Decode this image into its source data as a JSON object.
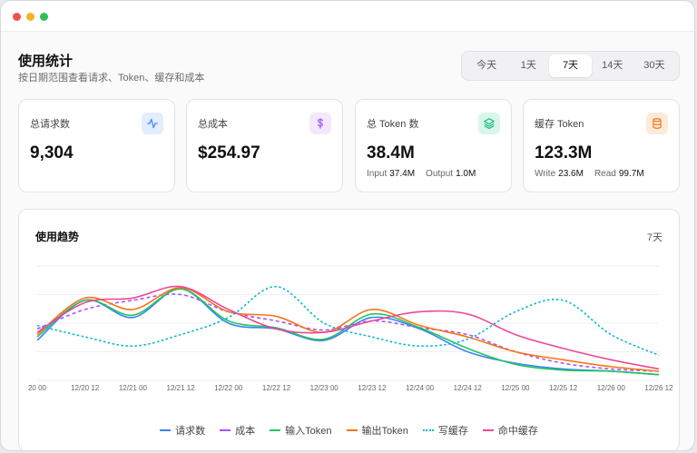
{
  "header": {
    "title": "使用统计",
    "subtitle": "按日期范围查看请求、Token、缓存和成本"
  },
  "range_tabs": [
    {
      "label": "今天",
      "active": false
    },
    {
      "label": "1天",
      "active": false
    },
    {
      "label": "7天",
      "active": true
    },
    {
      "label": "14天",
      "active": false
    },
    {
      "label": "30天",
      "active": false
    }
  ],
  "stats": {
    "requests": {
      "label": "总请求数",
      "value": "9,304",
      "icon": "activity-icon",
      "color": "#3b82f6"
    },
    "cost": {
      "label": "总成本",
      "value": "$254.97",
      "icon": "dollar-icon",
      "color": "#a855f7"
    },
    "tokens": {
      "label": "总 Token 数",
      "value": "38.4M",
      "icon": "layers-icon",
      "color": "#10b981",
      "sub": [
        {
          "key": "Input",
          "value": "37.4M"
        },
        {
          "key": "Output",
          "value": "1.0M"
        }
      ]
    },
    "cache": {
      "label": "缓存 Token",
      "value": "123.3M",
      "icon": "database-icon",
      "color": "#f97316",
      "sub": [
        {
          "key": "Write",
          "value": "23.6M"
        },
        {
          "key": "Read",
          "value": "99.7M"
        }
      ]
    }
  },
  "chart": {
    "title": "使用趋势",
    "range": "7天"
  },
  "chart_data": {
    "type": "line",
    "title": "使用趋势",
    "x": [
      "20 00",
      "12/20 12",
      "12/21 00",
      "12/21 12",
      "12/22 00",
      "12/22 12",
      "12/23 00",
      "12/23 12",
      "12/24 00",
      "12/24 12",
      "12/25 00",
      "12/25 12",
      "12/26 00",
      "12/26 12"
    ],
    "series": [
      {
        "name": "请求数",
        "color": "#3b82f6",
        "style": "solid",
        "values": [
          35,
          70,
          55,
          80,
          50,
          45,
          35,
          55,
          45,
          25,
          15,
          10,
          8,
          5
        ]
      },
      {
        "name": "成本",
        "color": "#a855f7",
        "style": "dashed",
        "values": [
          45,
          62,
          70,
          75,
          60,
          52,
          44,
          52,
          46,
          40,
          25,
          15,
          10,
          8
        ]
      },
      {
        "name": "输入Token",
        "color": "#22c55e",
        "style": "solid",
        "values": [
          38,
          70,
          57,
          80,
          52,
          46,
          36,
          58,
          46,
          28,
          14,
          9,
          8,
          5
        ]
      },
      {
        "name": "输出Token",
        "color": "#f97316",
        "style": "solid",
        "values": [
          40,
          72,
          62,
          81,
          60,
          56,
          42,
          62,
          48,
          38,
          25,
          18,
          12,
          8
        ]
      },
      {
        "name": "写缓存",
        "color": "#06b6d4",
        "style": "dotted",
        "values": [
          48,
          38,
          30,
          40,
          55,
          82,
          50,
          38,
          30,
          36,
          60,
          70,
          40,
          22
        ]
      },
      {
        "name": "命中缓存",
        "color": "#ec4899",
        "style": "solid",
        "values": [
          42,
          68,
          72,
          82,
          62,
          45,
          42,
          52,
          60,
          58,
          40,
          28,
          18,
          10
        ]
      }
    ],
    "ylim": [
      0,
      100
    ],
    "grid": true,
    "legend": "bottom-center"
  }
}
